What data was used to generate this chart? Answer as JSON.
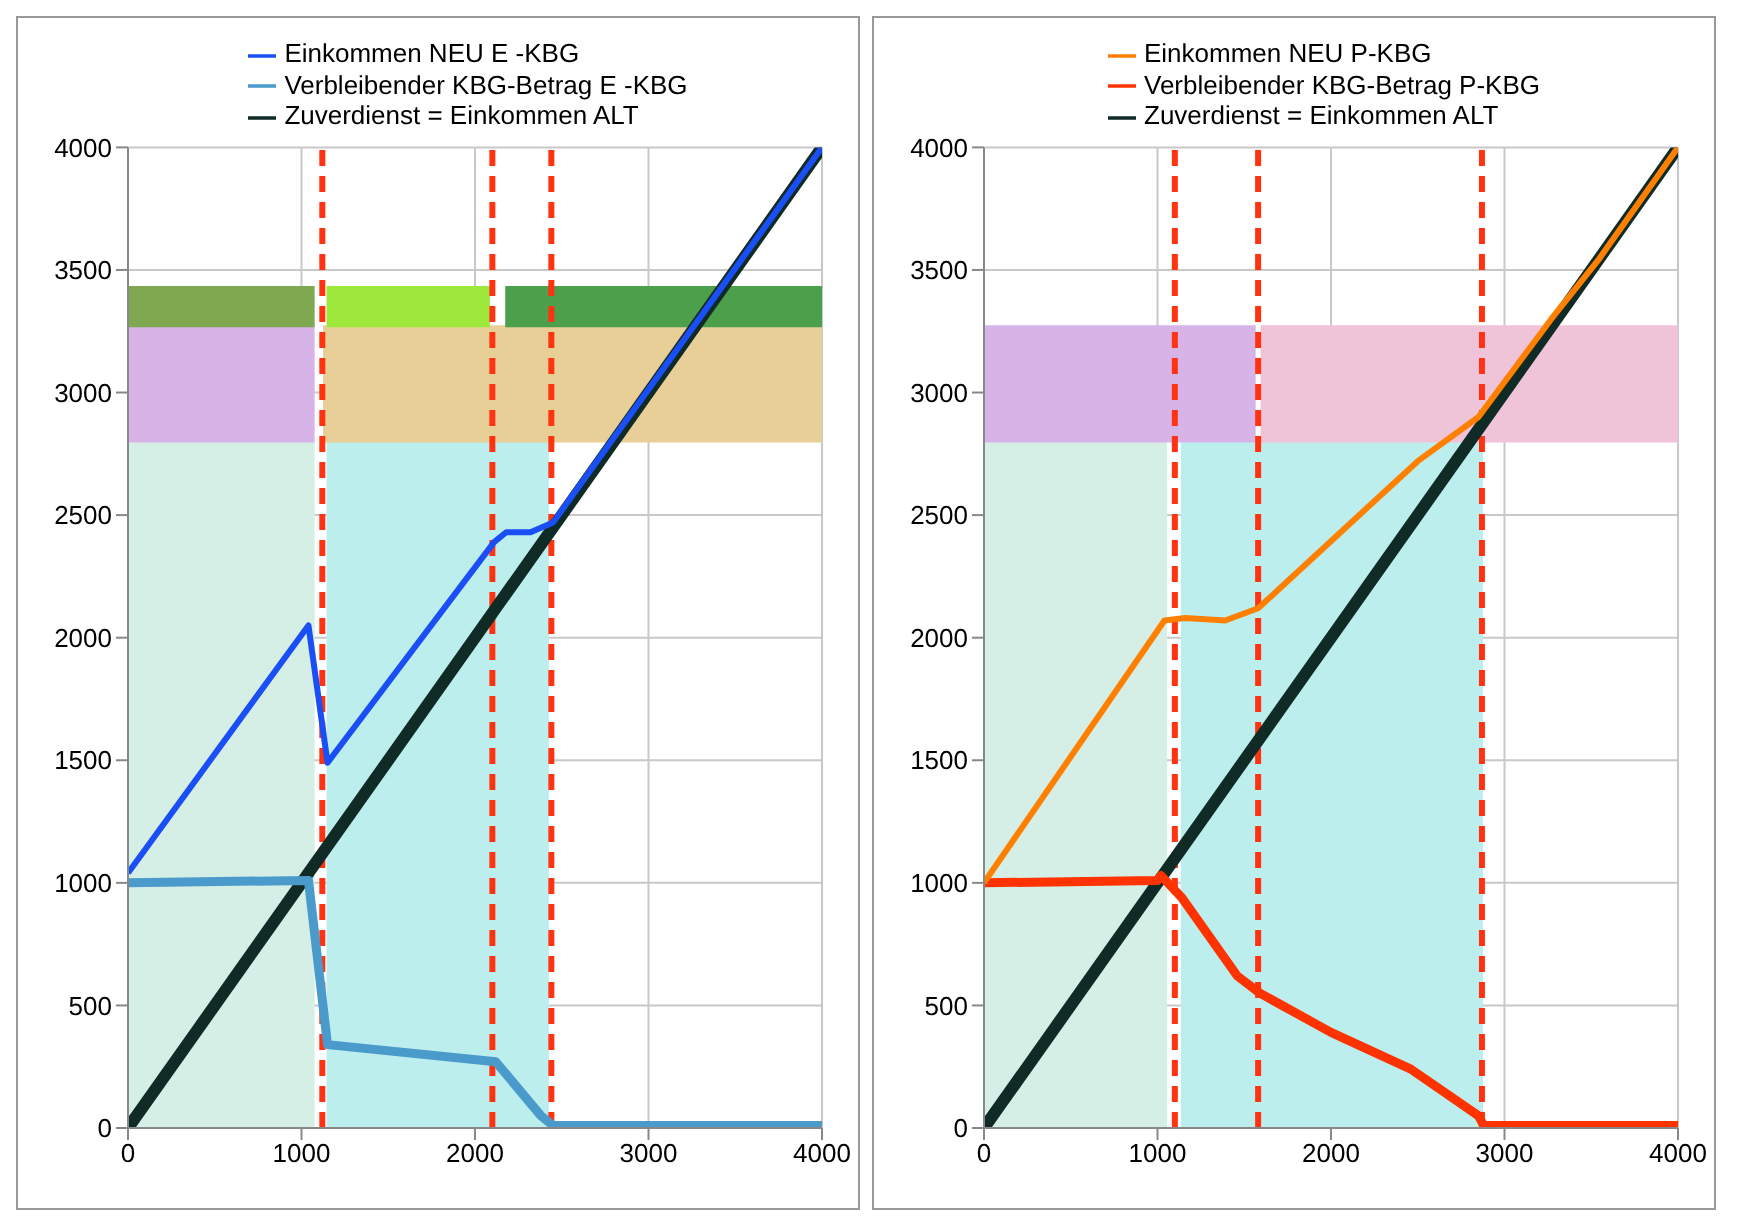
{
  "chart_data": [
    {
      "type": "line",
      "xlim": [
        0,
        4000
      ],
      "xticks": [
        0,
        1000,
        2000,
        3000,
        4000
      ],
      "ylim": [
        0,
        4000
      ],
      "yticks": [
        0,
        500,
        1000,
        1500,
        2000,
        2500,
        3000,
        3500,
        4000
      ],
      "grid": true,
      "legend": "top",
      "marker": "none",
      "line_style": "solid",
      "series": [
        {
          "name": "Zuverdienst = Einkommen ALT",
          "color": "#102a26",
          "x": [
            0,
            4000
          ],
          "values": [
            0,
            4000
          ]
        },
        {
          "name": "Verbleibender KBG-Betrag   E -KBG",
          "color": "#4a9acb",
          "x": [
            0,
            1040,
            1150,
            2120,
            2380,
            2450,
            4000
          ],
          "values": [
            1000,
            1010,
            340,
            270,
            50,
            10,
            10
          ]
        },
        {
          "name": "Einkommen NEU E -KBG",
          "color": "#1a4ff5",
          "x": [
            0,
            1040,
            1150,
            2110,
            2180,
            2320,
            2450,
            4000
          ],
          "values": [
            1040,
            2050,
            1490,
            2390,
            2430,
            2430,
            2470,
            4000
          ]
        }
      ],
      "bands": [
        {
          "axis": "x",
          "from": 0,
          "to": 1070,
          "color": "#d5eee6"
        },
        {
          "axis": "x",
          "from": 1150,
          "to": 2420,
          "color": "#bdeeee"
        },
        {
          "axis": "x",
          "from": 0,
          "to": 1070,
          "color": "#d7b3e8"
        },
        {
          "axis": "x",
          "from": 1130,
          "to": 4000,
          "color": "#e8cf98"
        },
        {
          "axis": "x",
          "from": 0,
          "to": 1070,
          "color": "#80a850"
        },
        {
          "axis": "x",
          "from": 1150,
          "to": 2080,
          "color": "#9de83a"
        },
        {
          "axis": "x",
          "from": 2180,
          "to": 4000,
          "color": "#4ca04c"
        }
      ],
      "ref_lines": [
        {
          "axis": "x",
          "value": 1120,
          "color": "#ff3311",
          "line_style": "dashed"
        },
        {
          "axis": "x",
          "value": 2100,
          "color": "#ff3311",
          "line_style": "dashed"
        },
        {
          "axis": "x",
          "value": 2440,
          "color": "#ff3311",
          "line_style": "dashed"
        }
      ]
    },
    {
      "type": "line",
      "xlim": [
        0,
        4000
      ],
      "xticks": [
        0,
        1000,
        2000,
        3000,
        4000
      ],
      "ylim": [
        0,
        4000
      ],
      "yticks": [
        0,
        500,
        1000,
        1500,
        2000,
        2500,
        3000,
        3500,
        4000
      ],
      "grid": true,
      "legend": "top",
      "marker": "none",
      "line_style": "solid",
      "series": [
        {
          "name": "Zuverdienst = Einkommen ALT",
          "color": "#102a26",
          "x": [
            0,
            4000
          ],
          "values": [
            0,
            4000
          ]
        },
        {
          "name": "Verbleibender KBG-Betrag   P-KBG",
          "color": "#ff3300",
          "x": [
            0,
            1000,
            1020,
            1140,
            1460,
            1590,
            2000,
            2460,
            2850,
            2880,
            4000
          ],
          "values": [
            1000,
            1010,
            1030,
            940,
            620,
            550,
            390,
            240,
            50,
            10,
            10
          ]
        },
        {
          "name": "Einkommen NEU P-KBG",
          "color": "#ff8000",
          "x": [
            0,
            1040,
            1160,
            1390,
            1580,
            2040,
            2500,
            2850,
            3270,
            3540,
            4000
          ],
          "values": [
            1000,
            2070,
            2080,
            2070,
            2120,
            2420,
            2720,
            2900,
            3300,
            3540,
            4000
          ]
        }
      ],
      "bands": [
        {
          "axis": "x",
          "from": 0,
          "to": 1050,
          "color": "#d5eee6"
        },
        {
          "axis": "x",
          "from": 1140,
          "to": 2870,
          "color": "#bdeeee"
        },
        {
          "axis": "x",
          "from": 0,
          "to": 1560,
          "color": "#d7b3e8"
        },
        {
          "axis": "x",
          "from": 1600,
          "to": 4000,
          "color": "#efc4d8"
        }
      ],
      "ref_lines": [
        {
          "axis": "x",
          "value": 1100,
          "color": "#ff3311",
          "line_style": "dashed"
        },
        {
          "axis": "x",
          "value": 1580,
          "color": "#ff3311",
          "line_style": "dashed"
        },
        {
          "axis": "x",
          "value": 2870,
          "color": "#ff3311",
          "line_style": "dashed"
        }
      ]
    }
  ]
}
